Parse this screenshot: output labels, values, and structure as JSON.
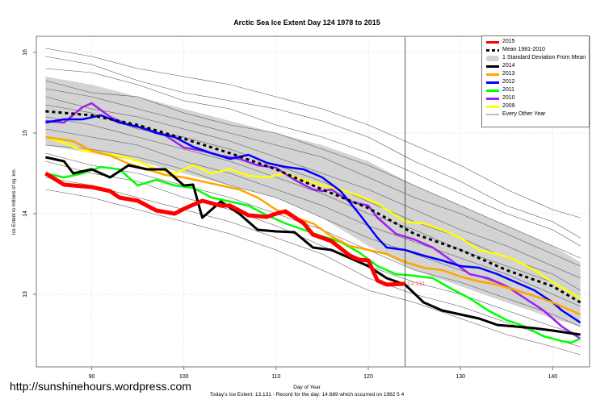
{
  "chart_data": {
    "type": "line",
    "title": "Arctic Sea Ice Extent Day 124 1978 to 2015",
    "xlabel": "Day of Year",
    "ylabel": "Ice Extent in millions of sq. km.",
    "xlim": [
      84,
      144
    ],
    "ylim": [
      12.1,
      16.2
    ],
    "x_ticks": [
      90,
      100,
      110,
      120,
      130,
      140
    ],
    "y_ticks": [
      13,
      14,
      15,
      16
    ],
    "grid": true,
    "legend_position": "top-right",
    "marker_day": 124,
    "annotation": "13.131",
    "band": {
      "name": "1 Standard Deviation From Mean",
      "color": "#d3d3d3",
      "x": [
        85,
        90,
        95,
        100,
        105,
        110,
        115,
        120,
        125,
        130,
        135,
        140,
        143
      ],
      "upper": [
        15.7,
        15.6,
        15.45,
        15.3,
        15.15,
        15.0,
        14.85,
        14.65,
        14.35,
        14.1,
        13.85,
        13.6,
        13.4
      ],
      "lower": [
        14.85,
        14.75,
        14.65,
        14.5,
        14.35,
        14.2,
        13.95,
        13.6,
        13.3,
        13.1,
        12.9,
        12.7,
        12.6
      ]
    },
    "series": [
      {
        "name": "2015",
        "color": "#ff0000",
        "width": 5,
        "x": [
          85,
          87,
          90,
          92,
          93,
          95,
          97,
          99,
          100,
          102,
          104,
          105,
          107,
          109,
          110,
          111,
          113,
          114,
          116,
          118,
          119,
          120,
          121,
          122,
          124
        ],
        "y": [
          14.5,
          14.36,
          14.33,
          14.28,
          14.2,
          14.16,
          14.04,
          14.0,
          14.06,
          14.16,
          14.1,
          14.1,
          13.98,
          13.96,
          14.0,
          14.03,
          13.88,
          13.74,
          13.66,
          13.48,
          13.43,
          13.42,
          13.17,
          13.12,
          13.131
        ]
      },
      {
        "name": "Mean 1981-2010",
        "color": "#000000",
        "width": 3,
        "dash": true,
        "x": [
          85,
          90,
          95,
          100,
          105,
          110,
          115,
          120,
          125,
          130,
          135,
          140,
          143
        ],
        "y": [
          15.27,
          15.22,
          15.1,
          14.93,
          14.75,
          14.55,
          14.3,
          14.07,
          13.75,
          13.55,
          13.3,
          13.1,
          12.9
        ]
      },
      {
        "name": "2014",
        "color": "#000000",
        "width": 3,
        "x": [
          85,
          87,
          88,
          90,
          92,
          94,
          96,
          98,
          100,
          101,
          102,
          104,
          106,
          108,
          110,
          112,
          114,
          116,
          118,
          120,
          122,
          124,
          126,
          128,
          130,
          132,
          134,
          136,
          138,
          140,
          143
        ],
        "y": [
          14.7,
          14.65,
          14.5,
          14.55,
          14.45,
          14.6,
          14.55,
          14.55,
          14.35,
          14.36,
          13.95,
          14.15,
          14.0,
          13.8,
          13.78,
          13.77,
          13.58,
          13.55,
          13.45,
          13.35,
          13.2,
          13.12,
          12.9,
          12.8,
          12.75,
          12.7,
          12.62,
          12.6,
          12.58,
          12.55,
          12.5
        ]
      },
      {
        "name": "2013",
        "color": "#ffa500",
        "width": 2.5,
        "x": [
          85,
          88,
          90,
          92,
          94,
          96,
          98,
          100,
          102,
          104,
          106,
          108,
          110,
          112,
          114,
          116,
          118,
          120,
          122,
          124,
          126,
          128,
          130,
          132,
          134,
          136,
          138,
          140,
          143
        ],
        "y": [
          14.95,
          14.9,
          14.78,
          14.72,
          14.62,
          14.55,
          14.48,
          14.45,
          14.4,
          14.35,
          14.3,
          14.2,
          14.05,
          13.95,
          13.88,
          13.72,
          13.6,
          13.55,
          13.5,
          13.4,
          13.33,
          13.3,
          13.22,
          13.16,
          13.12,
          13.05,
          12.98,
          12.9,
          12.75
        ]
      },
      {
        "name": "2012",
        "color": "#0000ff",
        "width": 2.5,
        "x": [
          85,
          87,
          89,
          91,
          93,
          95,
          97,
          99,
          101,
          103,
          105,
          107,
          109,
          111,
          113,
          115,
          117,
          119,
          121,
          122,
          124,
          126,
          128,
          130,
          132,
          134,
          136,
          138,
          140,
          141,
          143
        ],
        "y": [
          15.13,
          15.17,
          15.17,
          15.22,
          15.13,
          15.08,
          15.0,
          14.95,
          14.83,
          14.75,
          14.68,
          14.73,
          14.63,
          14.58,
          14.55,
          14.45,
          14.28,
          14.0,
          13.7,
          13.58,
          13.55,
          13.48,
          13.42,
          13.35,
          13.33,
          13.25,
          13.15,
          13.05,
          12.9,
          12.8,
          12.65
        ]
      },
      {
        "name": "2011",
        "color": "#00ff00",
        "width": 2.5,
        "x": [
          85,
          87,
          89,
          91,
          93,
          95,
          97,
          99,
          101,
          103,
          105,
          107,
          109,
          111,
          113,
          115,
          117,
          119,
          121,
          123,
          125,
          127,
          129,
          131,
          133,
          135,
          137,
          139,
          141,
          142,
          143
        ],
        "y": [
          14.5,
          14.45,
          14.5,
          14.58,
          14.55,
          14.35,
          14.42,
          14.35,
          14.32,
          14.2,
          14.15,
          14.1,
          13.98,
          13.88,
          13.8,
          13.72,
          13.65,
          13.52,
          13.35,
          13.25,
          13.23,
          13.2,
          13.07,
          12.95,
          12.8,
          12.68,
          12.6,
          12.48,
          12.42,
          12.4,
          12.45
        ]
      },
      {
        "name": "2010",
        "color": "#a020f0",
        "width": 2.5,
        "x": [
          85,
          87,
          89,
          90,
          92,
          94,
          96,
          98,
          100,
          102,
          104,
          106,
          108,
          110,
          112,
          114,
          115,
          116,
          118,
          120,
          121,
          123,
          125,
          127,
          129,
          131,
          133,
          135,
          137,
          139,
          141,
          143
        ],
        "y": [
          15.15,
          15.13,
          15.32,
          15.37,
          15.2,
          15.1,
          15.05,
          14.97,
          14.82,
          14.78,
          14.72,
          14.68,
          14.6,
          14.57,
          14.42,
          14.3,
          14.28,
          14.3,
          14.15,
          14.1,
          13.95,
          13.75,
          13.68,
          13.58,
          13.42,
          13.25,
          13.2,
          13.1,
          12.95,
          12.8,
          12.6,
          12.45
        ]
      },
      {
        "name": "2009",
        "color": "#ffff00",
        "width": 2.5,
        "x": [
          85,
          87,
          89,
          91,
          93,
          95,
          97,
          99,
          101,
          103,
          105,
          107,
          109,
          111,
          113,
          115,
          117,
          119,
          121,
          122,
          124,
          126,
          128,
          130,
          132,
          134,
          136,
          138,
          140,
          143
        ],
        "y": [
          14.95,
          14.88,
          14.78,
          14.75,
          14.72,
          14.65,
          14.55,
          14.5,
          14.6,
          14.5,
          14.55,
          14.47,
          14.45,
          14.5,
          14.42,
          14.35,
          14.3,
          14.22,
          14.13,
          14.05,
          13.9,
          13.88,
          13.8,
          13.7,
          13.55,
          13.5,
          13.42,
          13.3,
          13.15,
          12.95
        ]
      },
      {
        "name": "Every Other Year",
        "color": "#bebebe",
        "width": 1,
        "legend_only": true,
        "x": [],
        "y": []
      }
    ],
    "other_years": {
      "color": "#555555",
      "x": [
        85,
        90,
        95,
        100,
        105,
        110,
        115,
        120,
        125,
        130,
        135,
        140,
        143
      ],
      "lines": [
        [
          16.05,
          15.95,
          15.8,
          15.7,
          15.6,
          15.45,
          15.3,
          15.1,
          14.85,
          14.6,
          14.3,
          14.05,
          13.95
        ],
        [
          15.95,
          15.85,
          15.65,
          15.5,
          15.4,
          15.3,
          15.15,
          14.95,
          14.65,
          14.4,
          14.1,
          13.9,
          13.7
        ],
        [
          15.8,
          15.75,
          15.6,
          15.4,
          15.3,
          15.1,
          14.95,
          14.75,
          14.5,
          14.25,
          14.0,
          13.8,
          13.6
        ],
        [
          15.65,
          15.5,
          15.45,
          15.25,
          15.1,
          15.0,
          14.8,
          14.6,
          14.35,
          14.1,
          13.85,
          13.6,
          13.45
        ],
        [
          15.55,
          15.45,
          15.3,
          15.15,
          15.0,
          14.85,
          14.7,
          14.45,
          14.2,
          14.0,
          13.75,
          13.5,
          13.35
        ],
        [
          15.45,
          15.3,
          15.2,
          15.05,
          14.9,
          14.7,
          14.5,
          14.3,
          14.05,
          13.8,
          13.6,
          13.35,
          13.2
        ],
        [
          15.35,
          15.25,
          15.05,
          14.95,
          14.8,
          14.6,
          14.4,
          14.15,
          13.9,
          13.7,
          13.45,
          13.25,
          13.05
        ],
        [
          15.2,
          15.1,
          14.95,
          14.8,
          14.65,
          14.45,
          14.25,
          14.0,
          13.8,
          13.55,
          13.35,
          13.15,
          12.95
        ],
        [
          15.05,
          14.95,
          14.85,
          14.65,
          14.5,
          14.3,
          14.1,
          13.85,
          13.65,
          13.45,
          13.25,
          13.0,
          12.85
        ],
        [
          14.85,
          14.8,
          14.7,
          14.55,
          14.35,
          14.2,
          13.95,
          13.7,
          13.5,
          13.3,
          13.1,
          12.9,
          12.75
        ],
        [
          14.75,
          14.6,
          14.5,
          14.35,
          14.2,
          14.0,
          13.8,
          13.55,
          13.3,
          13.15,
          12.95,
          12.75,
          12.6
        ],
        [
          14.65,
          14.5,
          14.4,
          14.2,
          14.05,
          13.85,
          13.6,
          13.35,
          13.15,
          13.0,
          12.8,
          12.6,
          12.5
        ],
        [
          14.45,
          14.35,
          14.2,
          14.05,
          13.9,
          13.7,
          13.5,
          13.2,
          13.0,
          12.85,
          12.65,
          12.45,
          12.35
        ],
        [
          14.3,
          14.2,
          14.05,
          13.9,
          13.75,
          13.55,
          13.3,
          13.05,
          12.9,
          12.7,
          12.5,
          12.35,
          12.25
        ]
      ]
    }
  },
  "watermark_url": "http://sunshinehours.wordpress.com",
  "footer": "Today's Ice Extent: 13.131  - Record for the day: 14.689 which occurred on 1982 5 4"
}
